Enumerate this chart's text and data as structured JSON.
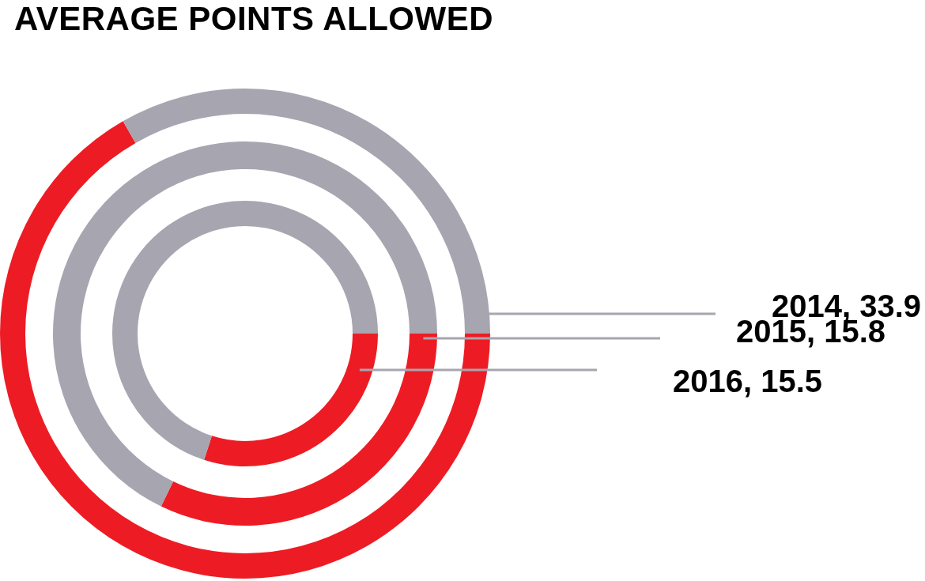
{
  "chart_data": {
    "type": "donut",
    "title": "AVERAGE POINTS ALLOWED",
    "categories": [
      null,
      null
    ],
    "colors": [
      "#ed1c24",
      "#a7a5b0"
    ],
    "series": [
      {
        "values": [
          66.7,
          33.3
        ]
      },
      {
        "values": [
          32.2,
          67.8
        ]
      },
      {
        "values": [
          30.0,
          70.0
        ]
      }
    ],
    "annotations": [
      "2014, 33.9",
      "2015, 15.8",
      "2016, 15.5"
    ]
  }
}
